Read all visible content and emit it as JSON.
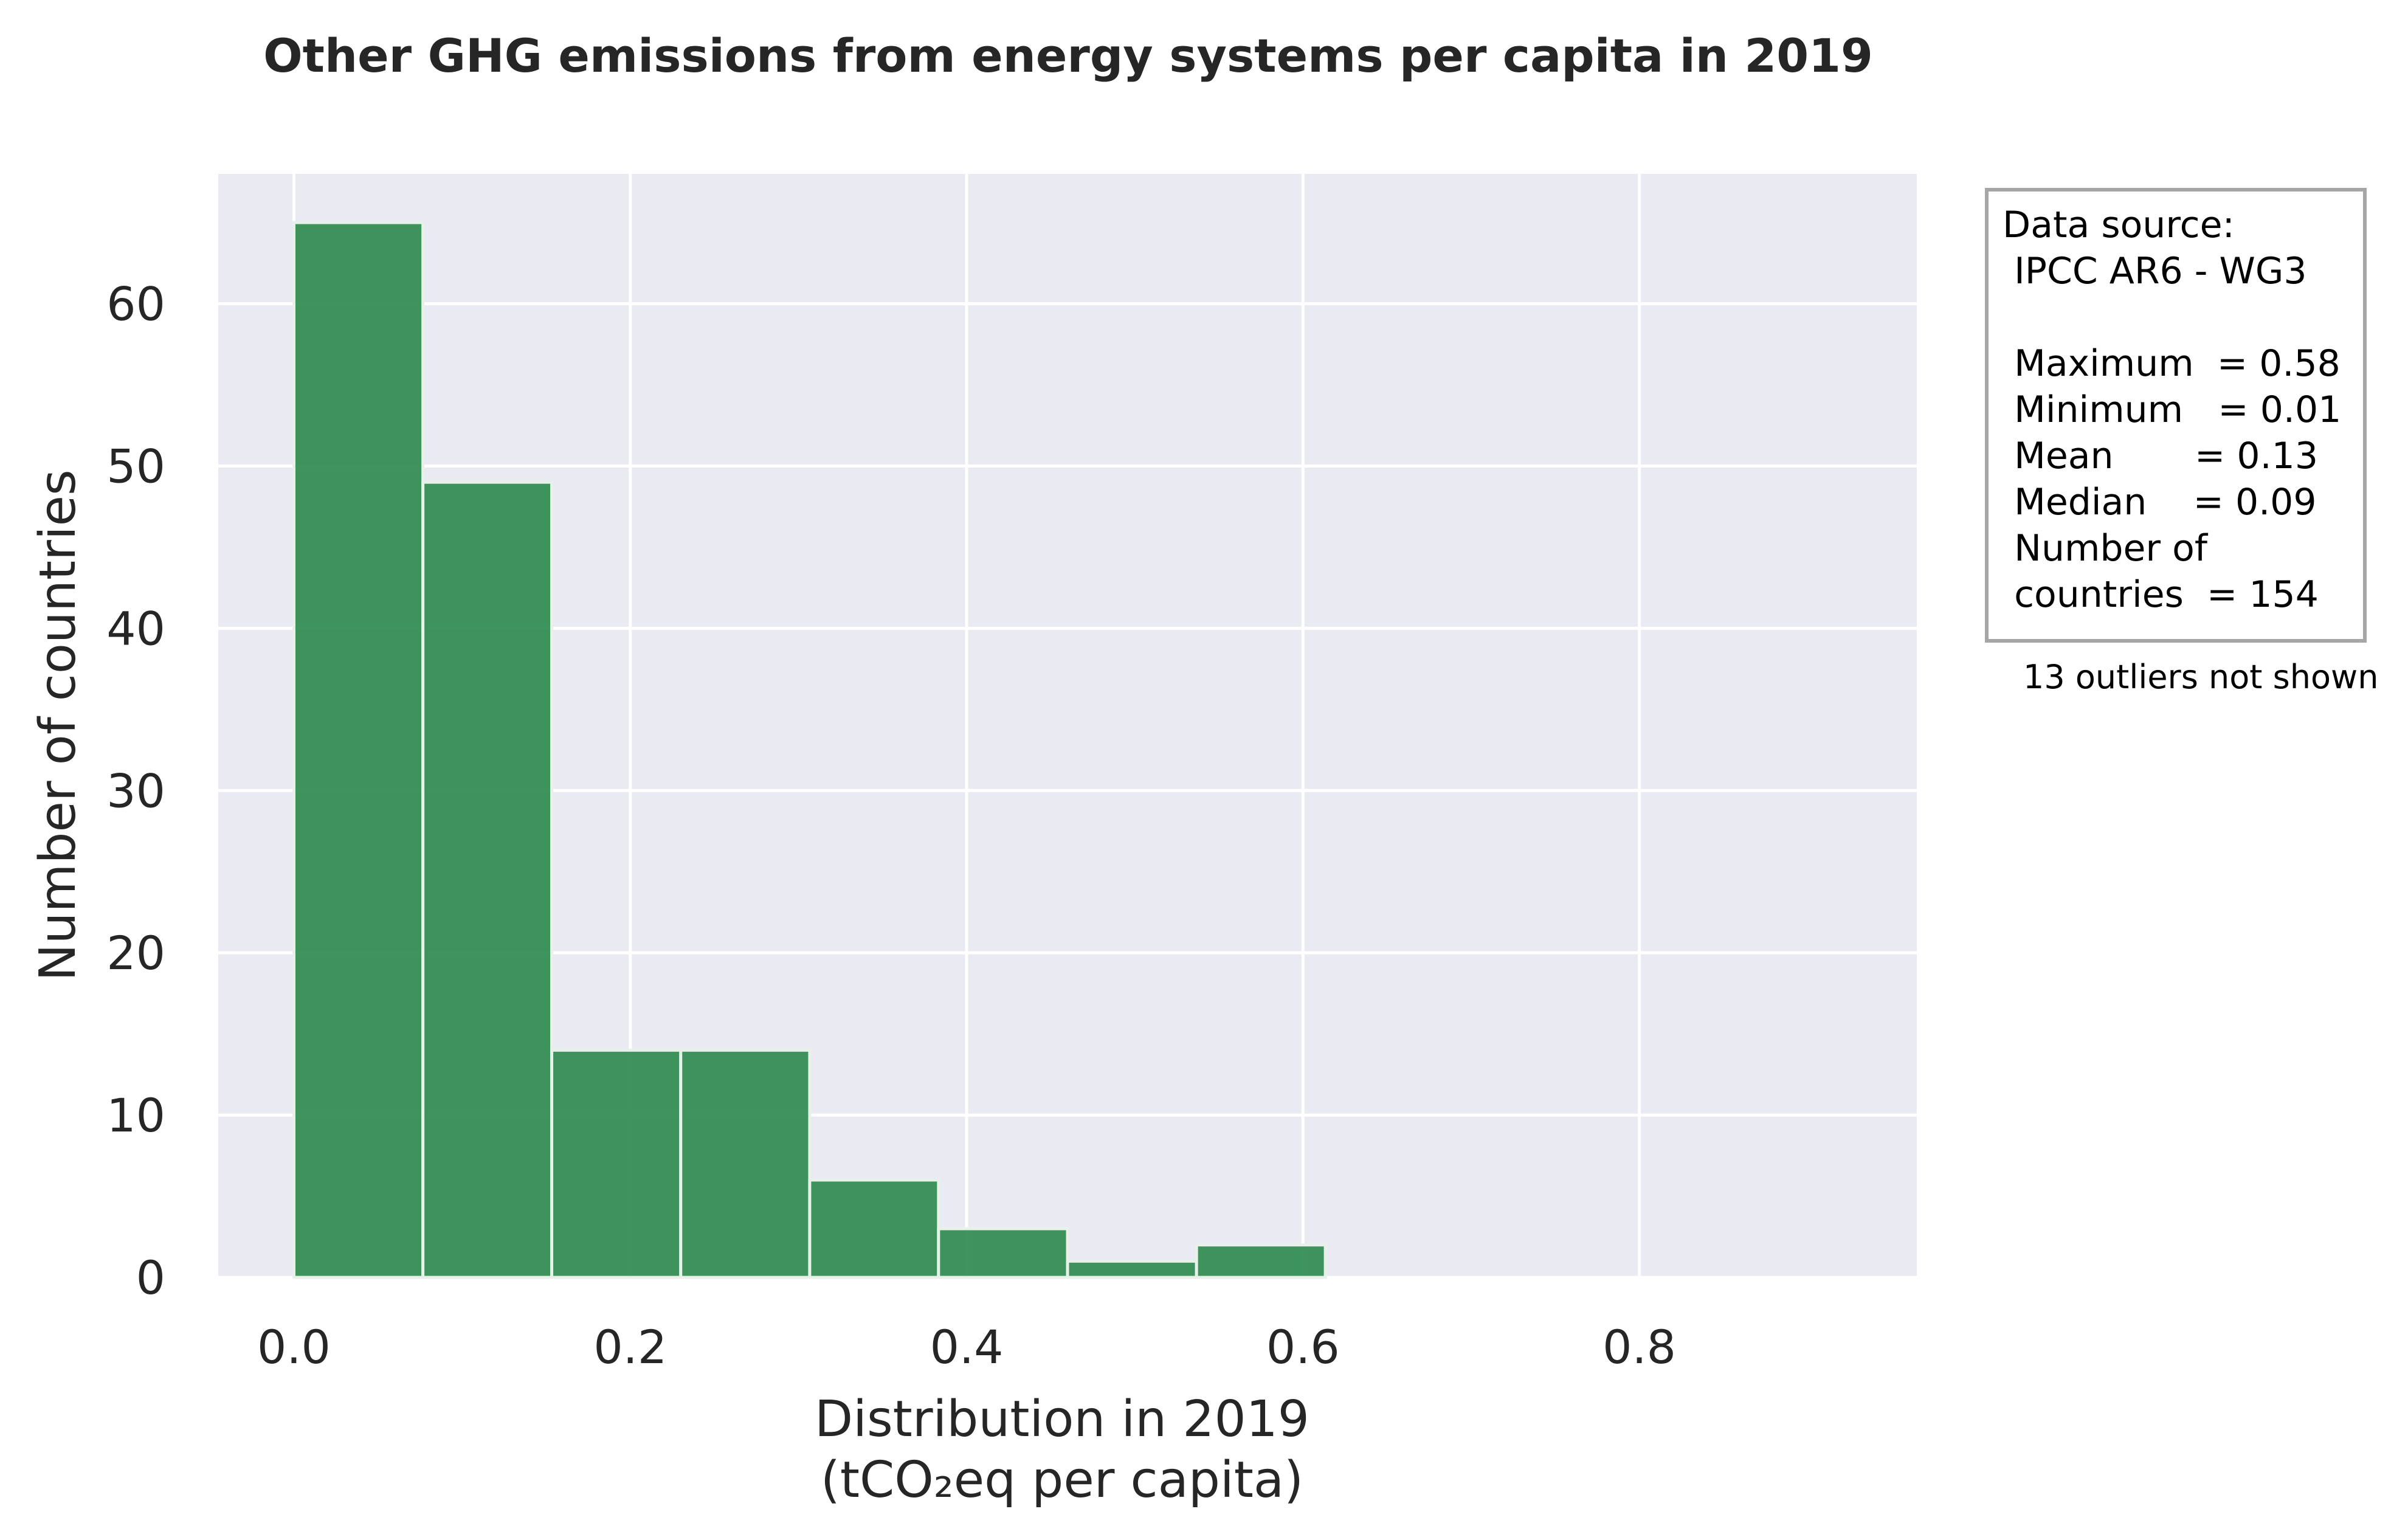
{
  "chart_data": {
    "type": "bar",
    "title": "Other GHG emissions from energy systems per capita in 2019",
    "xlabel": "Distribution in 2019",
    "xlabel_unit": "(tCO₂eq per capita)",
    "ylabel": "Number of countries",
    "bins": [
      {
        "x0": 0.0,
        "x1": 0.0767,
        "count": 65
      },
      {
        "x0": 0.0767,
        "x1": 0.1533,
        "count": 49
      },
      {
        "x0": 0.1533,
        "x1": 0.23,
        "count": 14
      },
      {
        "x0": 0.23,
        "x1": 0.3067,
        "count": 14
      },
      {
        "x0": 0.3067,
        "x1": 0.3833,
        "count": 6
      },
      {
        "x0": 0.3833,
        "x1": 0.46,
        "count": 3
      },
      {
        "x0": 0.46,
        "x1": 0.5367,
        "count": 1
      },
      {
        "x0": 0.5367,
        "x1": 0.6133,
        "count": 2
      }
    ],
    "xlim": [
      -0.045,
      0.965
    ],
    "ylim": [
      0,
      68
    ],
    "xticks": [
      0.0,
      0.2,
      0.4,
      0.6,
      0.8
    ],
    "xtick_labels": [
      "0.0",
      "0.2",
      "0.4",
      "0.6",
      "0.8"
    ],
    "yticks": [
      0,
      10,
      20,
      30,
      40,
      50,
      60
    ],
    "ytick_labels": [
      "0",
      "10",
      "20",
      "30",
      "40",
      "50",
      "60"
    ],
    "grid": true,
    "colors": {
      "bar": "#2e8b4e",
      "bar_edge": "#e8f0ea",
      "plot_background": "#eaeaf2",
      "grid": "#ffffff",
      "text": "#262626",
      "box_border": "#a6a6a6"
    }
  },
  "info_box": {
    "lines": [
      "Data source:",
      " IPCC AR6 - WG3",
      "",
      " Maximum  = 0.58",
      " Minimum   = 0.01",
      " Mean       = 0.13",
      " Median    = 0.09",
      " Number of",
      " countries  = 154"
    ]
  },
  "note": "13 outliers not shown"
}
